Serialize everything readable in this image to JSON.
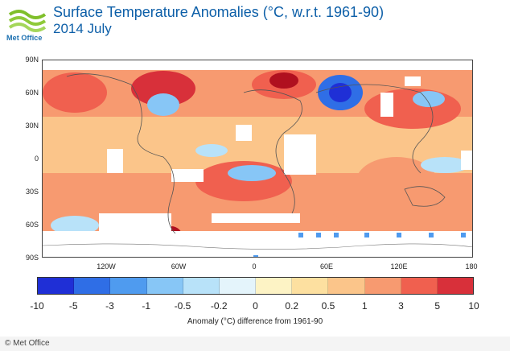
{
  "logo": {
    "text": "Met Office",
    "icon": "met-office-wave-logo",
    "color": "#7fbf2a"
  },
  "title": "Surface Temperature Anomalies (°C, w.r.t. 1961-90)",
  "subtitle": "2014 July",
  "map": {
    "lat_labels": [
      "90N",
      "60N",
      "30N",
      "0",
      "30S",
      "60S",
      "90S"
    ],
    "lon_labels": [
      "120W",
      "60W",
      "0",
      "60E",
      "120E",
      "180"
    ]
  },
  "colorbar": {
    "colors": [
      "#1f2fd6",
      "#2f6ee6",
      "#4f9bef",
      "#87c6f6",
      "#b8e2f9",
      "#e4f4fb",
      "#fdf3c5",
      "#fde0a0",
      "#fbc58a",
      "#f79a70",
      "#f0604f",
      "#d8303a",
      "#b0101f"
    ],
    "tick_labels": [
      "-10",
      "-5",
      "-3",
      "-1",
      "-0.5",
      "-0.2",
      "0",
      "0.2",
      "0.5",
      "1",
      "3",
      "5",
      "10"
    ],
    "caption": "Anomaly (°C) difference from 1961-90"
  },
  "credit": "© Met Office"
}
